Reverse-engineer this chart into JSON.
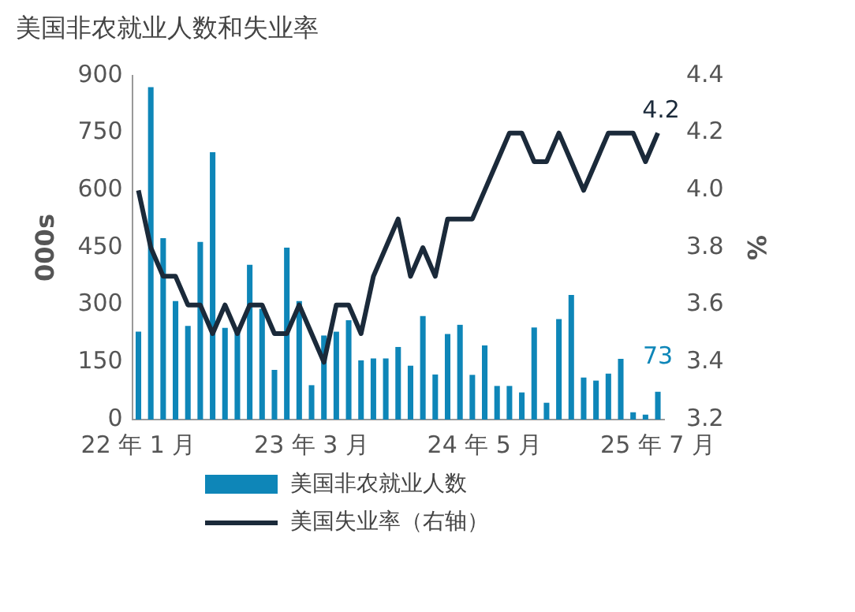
{
  "chart_data": {
    "type": "bar",
    "title": "美国非农就业人数和失业率",
    "ylabel": "000s",
    "y2label": "%",
    "categories": [
      "22 年 1 月",
      null,
      null,
      null,
      null,
      null,
      null,
      null,
      null,
      null,
      null,
      null,
      null,
      null,
      "23 年 3 月",
      null,
      null,
      null,
      null,
      null,
      null,
      null,
      null,
      null,
      null,
      null,
      null,
      null,
      "24 年 5 月",
      null,
      null,
      null,
      null,
      null,
      null,
      null,
      null,
      null,
      null,
      null,
      null,
      null,
      "25 年 7 月"
    ],
    "series": [
      {
        "name": "美国非农就业人数",
        "color": "#0e86b8",
        "values": [
          230,
          870,
          475,
          310,
          245,
          465,
          700,
          240,
          230,
          405,
          290,
          130,
          450,
          310,
          90,
          220,
          230,
          260,
          155,
          160,
          160,
          190,
          141,
          271,
          118,
          224,
          248,
          117,
          194,
          88,
          88,
          71,
          241,
          44,
          263,
          326,
          110,
          102,
          120,
          159,
          19,
          13,
          73
        ],
        "value_labels": [
          null,
          null,
          null,
          null,
          null,
          null,
          null,
          null,
          null,
          null,
          null,
          null,
          null,
          null,
          null,
          null,
          null,
          null,
          null,
          null,
          null,
          null,
          null,
          null,
          null,
          null,
          null,
          null,
          null,
          null,
          null,
          null,
          null,
          null,
          null,
          null,
          null,
          null,
          null,
          null,
          null,
          null,
          "73"
        ]
      },
      {
        "name": "美国失业率（右轴）",
        "type": "line",
        "axis": "y2",
        "color": "#1b2a3a",
        "values": [
          4.0,
          3.8,
          3.7,
          3.7,
          3.6,
          3.6,
          3.5,
          3.6,
          3.5,
          3.6,
          3.6,
          3.5,
          3.5,
          3.6,
          3.5,
          3.4,
          3.6,
          3.6,
          3.5,
          3.7,
          3.8,
          3.9,
          3.7,
          3.8,
          3.7,
          3.9,
          3.9,
          3.9,
          4.0,
          4.1,
          4.2,
          4.2,
          4.1,
          4.1,
          4.2,
          4.1,
          4.0,
          4.1,
          4.2,
          4.2,
          4.2,
          4.1,
          4.2
        ],
        "value_labels": [
          null,
          null,
          null,
          null,
          null,
          null,
          null,
          null,
          null,
          null,
          null,
          null,
          null,
          null,
          null,
          null,
          null,
          null,
          null,
          null,
          null,
          null,
          null,
          null,
          null,
          null,
          null,
          null,
          null,
          null,
          null,
          null,
          null,
          null,
          null,
          null,
          null,
          null,
          null,
          null,
          null,
          null,
          "4.2"
        ]
      }
    ],
    "ylim": [
      0,
      900
    ],
    "yticks": [
      0,
      150,
      300,
      450,
      600,
      750,
      900
    ],
    "y2lim": [
      3.2,
      4.4
    ],
    "y2ticks": [
      {
        "value": 3.2,
        "label": "3.2"
      },
      {
        "value": 3.4,
        "label": "3.4"
      },
      {
        "value": 3.6,
        "label": "3.6"
      },
      {
        "value": 3.8,
        "label": "3.8"
      },
      {
        "value": 4.0,
        "label": "4.0"
      },
      {
        "value": 4.2,
        "label": "4.2"
      },
      {
        "value": 4.4,
        "label": "4.4"
      }
    ],
    "grid": false,
    "legend": "bottom",
    "marker": "none",
    "line_style": "solid"
  }
}
